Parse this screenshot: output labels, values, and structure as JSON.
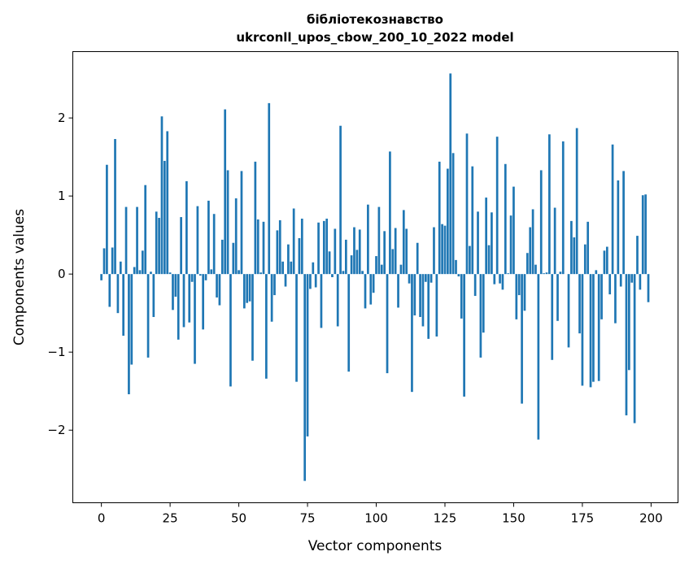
{
  "chart_data": {
    "type": "bar",
    "title": "бібліотекознавство",
    "subtitle": "ukrconll_upos_cbow_200_10_2022 model",
    "xlabel": "Vector components",
    "ylabel": "Components values",
    "xlim": [
      -10.4,
      209.8
    ],
    "ylim": [
      -2.93,
      2.85
    ],
    "xticks": [
      0,
      25,
      50,
      75,
      100,
      125,
      150,
      175,
      200
    ],
    "xtick_labels": [
      "0",
      "25",
      "50",
      "75",
      "100",
      "125",
      "150",
      "175",
      "200"
    ],
    "yticks": [
      -2,
      -1,
      0,
      1,
      2
    ],
    "ytick_labels": [
      "−2",
      "−1",
      "0",
      "1",
      "2"
    ],
    "grid": false,
    "color": "#1f77b4",
    "values": [
      -0.08,
      0.33,
      1.4,
      -0.42,
      0.34,
      1.73,
      -0.5,
      0.16,
      -0.79,
      0.86,
      -1.54,
      -1.16,
      0.09,
      0.86,
      0.05,
      0.3,
      1.14,
      -1.07,
      0.03,
      -0.55,
      0.8,
      0.72,
      2.02,
      1.45,
      1.83,
      0.02,
      -0.46,
      -0.29,
      -0.84,
      0.73,
      -0.68,
      1.19,
      -0.62,
      -0.1,
      -1.15,
      0.87,
      -0.02,
      -0.71,
      -0.08,
      0.94,
      0.06,
      0.77,
      -0.3,
      -0.4,
      0.44,
      2.11,
      1.33,
      -1.44,
      0.4,
      0.97,
      0.05,
      1.32,
      -0.44,
      -0.37,
      -0.35,
      -1.11,
      1.44,
      0.7,
      0.02,
      0.67,
      -1.34,
      2.19,
      -0.61,
      -0.27,
      0.56,
      0.69,
      0.16,
      -0.16,
      0.38,
      0.16,
      0.84,
      -1.38,
      0.46,
      0.71,
      -2.65,
      -2.08,
      -0.19,
      0.15,
      -0.17,
      0.66,
      -0.69,
      0.68,
      0.71,
      0.29,
      -0.04,
      0.58,
      -0.67,
      1.9,
      0.04,
      0.44,
      -1.25,
      0.24,
      0.6,
      0.31,
      0.57,
      0.04,
      -0.44,
      0.89,
      -0.39,
      -0.24,
      0.23,
      0.86,
      0.12,
      0.55,
      -1.27,
      1.57,
      0.32,
      0.59,
      -0.43,
      0.12,
      0.82,
      0.58,
      -0.12,
      -1.51,
      -0.53,
      0.4,
      -0.55,
      -0.67,
      -0.1,
      -0.83,
      -0.11,
      0.6,
      -0.8,
      1.44,
      0.64,
      0.62,
      1.35,
      2.57,
      1.55,
      0.18,
      -0.03,
      -0.57,
      -1.57,
      1.8,
      0.36,
      1.38,
      -0.28,
      0.8,
      -1.07,
      -0.75,
      0.98,
      0.37,
      0.79,
      -0.13,
      1.76,
      -0.12,
      -0.2,
      1.41,
      0.01,
      0.75,
      1.12,
      -0.58,
      -0.27,
      -1.66,
      -0.47,
      0.27,
      0.6,
      0.83,
      0.12,
      -2.12,
      1.33,
      0.01,
      0.02,
      1.79,
      -1.1,
      0.85,
      -0.6,
      0.03,
      1.7,
      0.0,
      -0.94,
      0.68,
      0.47,
      1.87,
      -0.76,
      -1.43,
      0.38,
      0.67,
      -1.45,
      -1.38,
      0.05,
      -1.37,
      -0.58,
      0.3,
      0.35,
      -0.26,
      1.66,
      -0.63,
      1.2,
      -0.16,
      1.32,
      -1.81,
      -1.23,
      -0.11,
      -1.91,
      0.49,
      -0.2,
      1.01,
      1.02,
      -0.36
    ]
  }
}
